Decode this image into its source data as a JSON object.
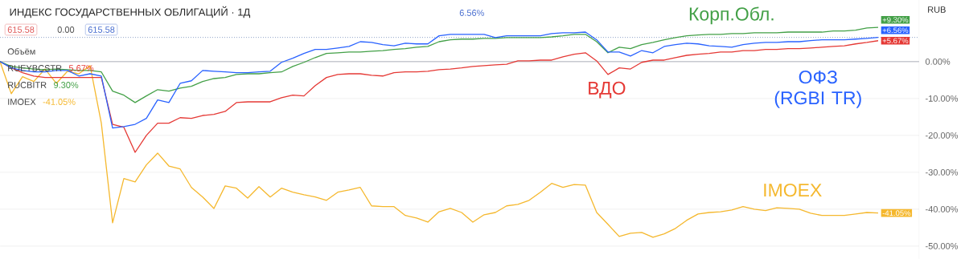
{
  "chart_data": {
    "type": "line",
    "title": "ИНДЕКС ГОСУДАРСТВЕННЫХ ОБЛИГАЦИЙ · 1Д",
    "categories": [
      null,
      null,
      null,
      null,
      null,
      null,
      null,
      null,
      null,
      null,
      null,
      null,
      null,
      null,
      null,
      null,
      null,
      null,
      null,
      null,
      null,
      null,
      null,
      null,
      null,
      null,
      null,
      null,
      null,
      null,
      null,
      null,
      null,
      null,
      null,
      null,
      null,
      null,
      null,
      null,
      null,
      null,
      null,
      null,
      null,
      null,
      null,
      null,
      null,
      null,
      null,
      null,
      null,
      null,
      null,
      null,
      null,
      null,
      null,
      null,
      null,
      null,
      null,
      null,
      null,
      null,
      null,
      null,
      null,
      null,
      null,
      null,
      null,
      null,
      null,
      null,
      null,
      null,
      null
    ],
    "series": [
      {
        "name": "Корп.Обл.",
        "color": "#43a047",
        "values": [
          0,
          -1.3,
          -1.7,
          -2.0,
          -2.2,
          -2.0,
          -2.2,
          -2.4,
          -2.4,
          -2.8,
          -8.0,
          -9.1,
          -11.1,
          -9.3,
          -7.6,
          -8.0,
          -7.2,
          -6.7,
          -5.4,
          -4.6,
          -4.3,
          -3.5,
          -3.3,
          -3.3,
          -3.0,
          -2.8,
          -1.3,
          -0.2,
          1.1,
          2.2,
          2.4,
          2.6,
          2.6,
          2.8,
          3.0,
          3.3,
          3.5,
          3.9,
          4.1,
          5.4,
          5.9,
          6.1,
          6.1,
          6.3,
          6.3,
          6.5,
          6.5,
          6.5,
          6.5,
          6.7,
          7.0,
          7.4,
          7.4,
          5.4,
          2.4,
          3.9,
          3.5,
          4.6,
          5.2,
          5.9,
          6.5,
          7.0,
          7.2,
          7.4,
          7.4,
          7.6,
          7.6,
          7.8,
          7.8,
          7.8,
          8.0,
          8.0,
          8.0,
          8.0,
          8.3,
          8.3,
          8.5,
          9.1,
          9.3
        ],
        "value_labels": [
          null,
          null,
          null,
          null,
          null,
          null,
          null,
          null,
          null,
          null,
          null,
          null,
          null,
          null,
          null,
          null,
          null,
          null,
          null,
          null,
          null,
          null,
          null,
          null,
          null,
          null,
          null,
          null,
          null,
          null,
          null,
          null,
          null,
          null,
          null,
          null,
          null,
          null,
          null,
          null,
          null,
          null,
          null,
          null,
          null,
          null,
          null,
          null,
          null,
          null,
          null,
          null,
          null,
          null,
          null,
          null,
          null,
          null,
          null,
          null,
          null,
          null,
          null,
          null,
          null,
          null,
          null,
          null,
          null,
          null,
          null,
          null,
          null,
          null,
          null,
          null,
          null,
          null,
          "+9.30%"
        ]
      },
      {
        "name": "ОФЗ (RGBI TR)",
        "color": "#2962ff",
        "values": [
          0,
          -1.7,
          -2.4,
          -2.8,
          -2.8,
          -2.4,
          -2.4,
          -3.9,
          -3.3,
          -3.9,
          -18.0,
          -17.6,
          -17.0,
          -15.4,
          -10.4,
          -11.1,
          -5.9,
          -5.2,
          -2.4,
          -2.6,
          -2.8,
          -3.0,
          -3.0,
          -2.8,
          -2.6,
          -0.2,
          0.9,
          2.2,
          3.3,
          3.3,
          3.7,
          4.1,
          5.4,
          5.2,
          4.6,
          4.3,
          5.0,
          4.8,
          4.8,
          7.0,
          7.4,
          7.4,
          7.4,
          7.4,
          6.5,
          7.0,
          7.0,
          7.0,
          7.0,
          7.6,
          7.8,
          7.8,
          8.0,
          5.9,
          2.6,
          2.6,
          1.5,
          3.0,
          2.4,
          4.1,
          4.6,
          5.0,
          4.8,
          4.3,
          4.1,
          3.9,
          4.6,
          5.0,
          5.2,
          5.2,
          5.4,
          5.4,
          5.7,
          5.9,
          5.9,
          5.9,
          6.1,
          6.3,
          6.56
        ],
        "value_labels": [
          null,
          null,
          null,
          null,
          null,
          null,
          null,
          null,
          null,
          null,
          null,
          null,
          null,
          null,
          null,
          null,
          null,
          null,
          null,
          null,
          null,
          null,
          null,
          null,
          null,
          null,
          null,
          null,
          null,
          null,
          null,
          null,
          null,
          null,
          null,
          null,
          null,
          null,
          null,
          null,
          null,
          null,
          null,
          null,
          null,
          null,
          null,
          null,
          null,
          null,
          null,
          null,
          null,
          null,
          null,
          null,
          null,
          null,
          null,
          null,
          null,
          null,
          null,
          null,
          null,
          null,
          null,
          null,
          null,
          null,
          null,
          null,
          null,
          null,
          null,
          null,
          null,
          null,
          "+6.56%"
        ]
      },
      {
        "name": "ВДО",
        "color": "#e53935",
        "values": [
          0,
          -1.7,
          -3.0,
          -3.9,
          -4.3,
          -4.3,
          -4.3,
          -4.3,
          -4.3,
          -4.3,
          -17.0,
          -17.8,
          -24.6,
          -20.0,
          -16.7,
          -16.7,
          -15.2,
          -15.4,
          -14.6,
          -14.3,
          -13.5,
          -11.1,
          -10.9,
          -10.9,
          -10.9,
          -9.8,
          -9.1,
          -9.3,
          -6.5,
          -4.3,
          -3.5,
          -3.3,
          -3.3,
          -3.7,
          -3.9,
          -3.0,
          -2.8,
          -2.8,
          -2.6,
          -2.2,
          -2.0,
          -1.7,
          -1.3,
          -1.1,
          -0.9,
          -0.7,
          0.2,
          0.2,
          0.4,
          0.4,
          1.3,
          2.0,
          2.4,
          0.2,
          -3.5,
          -1.7,
          -2.0,
          -0.2,
          0.4,
          0.4,
          1.1,
          1.7,
          2.0,
          2.2,
          2.6,
          2.6,
          3.0,
          3.0,
          3.3,
          3.3,
          3.5,
          3.5,
          3.7,
          3.9,
          4.1,
          4.3,
          4.8,
          5.2,
          5.67
        ],
        "value_labels": [
          null,
          null,
          null,
          null,
          null,
          null,
          null,
          null,
          null,
          null,
          null,
          null,
          null,
          null,
          null,
          null,
          null,
          null,
          null,
          null,
          null,
          null,
          null,
          null,
          null,
          null,
          null,
          null,
          null,
          null,
          null,
          null,
          null,
          null,
          null,
          null,
          null,
          null,
          null,
          null,
          null,
          null,
          null,
          null,
          null,
          null,
          null,
          null,
          null,
          null,
          null,
          null,
          null,
          null,
          null,
          null,
          null,
          null,
          null,
          null,
          null,
          null,
          null,
          null,
          null,
          null,
          null,
          null,
          null,
          null,
          null,
          null,
          null,
          null,
          null,
          null,
          null,
          null,
          "+5.67%"
        ]
      },
      {
        "name": "IMOEX",
        "color": "#f5b82e",
        "values": [
          0,
          -8.7,
          -4.1,
          -5.4,
          -2.0,
          -5.9,
          -2.6,
          -3.3,
          -1.1,
          -16.7,
          -43.7,
          -31.7,
          -32.6,
          -28.0,
          -24.8,
          -28.3,
          -29.1,
          -34.1,
          -36.7,
          -39.8,
          -33.7,
          -34.3,
          -37.0,
          -33.9,
          -36.7,
          -34.3,
          -35.4,
          -36.1,
          -36.7,
          -37.6,
          -35.4,
          -34.8,
          -34.1,
          -39.1,
          -39.3,
          -39.3,
          -41.7,
          -42.4,
          -43.5,
          -40.7,
          -39.8,
          -40.9,
          -43.5,
          -41.5,
          -40.9,
          -39.1,
          -38.7,
          -37.6,
          -35.4,
          -33.0,
          -34.1,
          -33.3,
          -33.5,
          -40.9,
          -44.1,
          -47.4,
          -46.5,
          -46.3,
          -47.6,
          -46.7,
          -45.2,
          -43.0,
          -41.3,
          -40.9,
          -40.7,
          -40.2,
          -39.3,
          -40.0,
          -40.4,
          -39.6,
          -39.8,
          -40.0,
          -41.1,
          -41.7,
          -41.7,
          -41.7,
          -41.3,
          -40.9,
          -41.05
        ],
        "value_labels": [
          null,
          null,
          null,
          null,
          null,
          null,
          null,
          null,
          null,
          null,
          null,
          null,
          null,
          null,
          null,
          null,
          null,
          null,
          null,
          null,
          null,
          null,
          null,
          null,
          null,
          null,
          null,
          null,
          null,
          null,
          null,
          null,
          null,
          null,
          null,
          null,
          null,
          null,
          null,
          null,
          null,
          null,
          null,
          null,
          null,
          null,
          null,
          null,
          null,
          null,
          null,
          null,
          null,
          null,
          null,
          null,
          null,
          null,
          null,
          null,
          null,
          null,
          null,
          null,
          null,
          null,
          null,
          null,
          null,
          null,
          null,
          null,
          null,
          null,
          null,
          null,
          null,
          null,
          "-41.05%"
        ]
      }
    ],
    "ylim": [
      -53.5,
      16.7
    ],
    "yticks": [
      {
        "value": 0,
        "label": "0.00%"
      },
      {
        "value": -10,
        "label": "-10.00%"
      },
      {
        "value": -20,
        "label": "-20.00%"
      },
      {
        "value": -30,
        "label": "-30.00%"
      },
      {
        "value": -40,
        "label": "-40.00%"
      },
      {
        "value": -50,
        "label": "-50.00%"
      }
    ],
    "grid": "y",
    "line_style": "solid",
    "ref_lines": [
      {
        "axis": "y",
        "value": 0,
        "color": "#b2b5be",
        "line_style": "solid"
      },
      {
        "axis": "y",
        "value": 6.56,
        "color": "#8fa3c8",
        "line_style": "dotted"
      }
    ],
    "annotations": [
      "615.58",
      "0.00",
      "615.58",
      "Объём",
      "RUEYBCSTR",
      "5.67%",
      "RUCBITR",
      "9.30%",
      "IMOEX",
      "-41.05%",
      "6.56%",
      "RUB"
    ]
  }
}
